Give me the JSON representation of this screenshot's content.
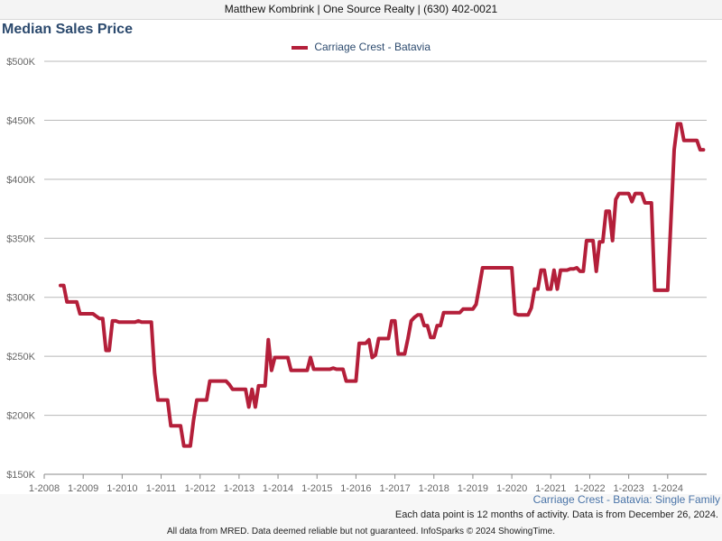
{
  "header": {
    "text": "Matthew Kombrink | One Source Realty | (630) 402-0021"
  },
  "footer": {
    "subtitle": "Carriage Crest - Batavia: Single Family",
    "note": "Each data point is 12 months of activity. Data is from December 26, 2024.",
    "disclaimer": "All data from MRED. Data deemed reliable but not guaranteed. InfoSparks © 2024 ShowingTime."
  },
  "colors": {
    "series": "#b41f3a",
    "grid": "#b8b8b8",
    "title": "#2c4a6e"
  },
  "chart_data": {
    "type": "line",
    "title": "Median Sales Price",
    "xlabel": "",
    "ylabel": "",
    "grid": true,
    "legend_position": "top-center",
    "ylim": [
      150000,
      500000
    ],
    "y_ticks": [
      150000,
      200000,
      250000,
      300000,
      350000,
      400000,
      450000,
      500000
    ],
    "y_tick_labels": [
      "$150K",
      "$200K",
      "$250K",
      "$300K",
      "$350K",
      "$400K",
      "$450K",
      "$500K"
    ],
    "xlim": [
      "2008-01",
      "2024-12"
    ],
    "x_tick_labels": [
      "1-2008",
      "1-2009",
      "1-2010",
      "1-2011",
      "1-2012",
      "1-2013",
      "1-2014",
      "1-2015",
      "1-2016",
      "1-2017",
      "1-2018",
      "1-2019",
      "1-2020",
      "1-2021",
      "1-2022",
      "1-2023",
      "1-2024"
    ],
    "series": [
      {
        "name": "Carriage Crest - Batavia",
        "points": [
          [
            "2008-06",
            310000
          ],
          [
            "2008-07",
            310000
          ],
          [
            "2008-08",
            296000
          ],
          [
            "2008-09",
            296000
          ],
          [
            "2008-10",
            296000
          ],
          [
            "2008-11",
            296000
          ],
          [
            "2008-12",
            286000
          ],
          [
            "2009-01",
            286000
          ],
          [
            "2009-02",
            286000
          ],
          [
            "2009-03",
            286000
          ],
          [
            "2009-04",
            286000
          ],
          [
            "2009-05",
            284000
          ],
          [
            "2009-06",
            282000
          ],
          [
            "2009-07",
            282000
          ],
          [
            "2009-08",
            255000
          ],
          [
            "2009-09",
            255000
          ],
          [
            "2009-10",
            280000
          ],
          [
            "2009-11",
            280000
          ],
          [
            "2009-12",
            279000
          ],
          [
            "2010-01",
            279000
          ],
          [
            "2010-02",
            279000
          ],
          [
            "2010-03",
            279000
          ],
          [
            "2010-04",
            279000
          ],
          [
            "2010-05",
            279000
          ],
          [
            "2010-06",
            280000
          ],
          [
            "2010-07",
            279000
          ],
          [
            "2010-08",
            279000
          ],
          [
            "2010-09",
            279000
          ],
          [
            "2010-10",
            279000
          ],
          [
            "2010-11",
            236000
          ],
          [
            "2010-12",
            213000
          ],
          [
            "2011-01",
            213000
          ],
          [
            "2011-02",
            213000
          ],
          [
            "2011-03",
            213000
          ],
          [
            "2011-04",
            191000
          ],
          [
            "2011-05",
            191000
          ],
          [
            "2011-06",
            191000
          ],
          [
            "2011-07",
            191000
          ],
          [
            "2011-08",
            174000
          ],
          [
            "2011-09",
            174000
          ],
          [
            "2011-10",
            174000
          ],
          [
            "2011-11",
            196000
          ],
          [
            "2011-12",
            213000
          ],
          [
            "2012-01",
            213000
          ],
          [
            "2012-02",
            213000
          ],
          [
            "2012-03",
            213000
          ],
          [
            "2012-04",
            229000
          ],
          [
            "2012-05",
            229000
          ],
          [
            "2012-06",
            229000
          ],
          [
            "2012-07",
            229000
          ],
          [
            "2012-08",
            229000
          ],
          [
            "2012-09",
            229000
          ],
          [
            "2012-10",
            226000
          ],
          [
            "2012-11",
            222000
          ],
          [
            "2012-12",
            222000
          ],
          [
            "2013-01",
            222000
          ],
          [
            "2013-02",
            222000
          ],
          [
            "2013-03",
            222000
          ],
          [
            "2013-04",
            207000
          ],
          [
            "2013-05",
            222000
          ],
          [
            "2013-06",
            207000
          ],
          [
            "2013-07",
            225000
          ],
          [
            "2013-08",
            225000
          ],
          [
            "2013-09",
            225000
          ],
          [
            "2013-10",
            264000
          ],
          [
            "2013-11",
            238000
          ],
          [
            "2013-12",
            249000
          ],
          [
            "2014-01",
            249000
          ],
          [
            "2014-02",
            249000
          ],
          [
            "2014-03",
            249000
          ],
          [
            "2014-04",
            249000
          ],
          [
            "2014-05",
            238000
          ],
          [
            "2014-06",
            238000
          ],
          [
            "2014-07",
            238000
          ],
          [
            "2014-08",
            238000
          ],
          [
            "2014-09",
            238000
          ],
          [
            "2014-10",
            238000
          ],
          [
            "2014-11",
            249000
          ],
          [
            "2014-12",
            239000
          ],
          [
            "2015-01",
            239000
          ],
          [
            "2015-02",
            239000
          ],
          [
            "2015-03",
            239000
          ],
          [
            "2015-04",
            239000
          ],
          [
            "2015-05",
            239000
          ],
          [
            "2015-06",
            240000
          ],
          [
            "2015-07",
            239000
          ],
          [
            "2015-08",
            239000
          ],
          [
            "2015-09",
            239000
          ],
          [
            "2015-10",
            229000
          ],
          [
            "2015-11",
            229000
          ],
          [
            "2015-12",
            229000
          ],
          [
            "2016-01",
            229000
          ],
          [
            "2016-02",
            261000
          ],
          [
            "2016-03",
            261000
          ],
          [
            "2016-04",
            261000
          ],
          [
            "2016-05",
            264000
          ],
          [
            "2016-06",
            249000
          ],
          [
            "2016-07",
            251000
          ],
          [
            "2016-08",
            265000
          ],
          [
            "2016-09",
            265000
          ],
          [
            "2016-10",
            265000
          ],
          [
            "2016-11",
            265000
          ],
          [
            "2016-12",
            280000
          ],
          [
            "2017-01",
            280000
          ],
          [
            "2017-02",
            252000
          ],
          [
            "2017-03",
            252000
          ],
          [
            "2017-04",
            252000
          ],
          [
            "2017-05",
            265000
          ],
          [
            "2017-06",
            280000
          ],
          [
            "2017-07",
            283000
          ],
          [
            "2017-08",
            285000
          ],
          [
            "2017-09",
            285000
          ],
          [
            "2017-10",
            276000
          ],
          [
            "2017-11",
            276000
          ],
          [
            "2017-12",
            266000
          ],
          [
            "2018-01",
            266000
          ],
          [
            "2018-02",
            276000
          ],
          [
            "2018-03",
            276000
          ],
          [
            "2018-04",
            287000
          ],
          [
            "2018-05",
            287000
          ],
          [
            "2018-06",
            287000
          ],
          [
            "2018-07",
            287000
          ],
          [
            "2018-08",
            287000
          ],
          [
            "2018-09",
            287000
          ],
          [
            "2018-10",
            290000
          ],
          [
            "2018-11",
            290000
          ],
          [
            "2018-12",
            290000
          ],
          [
            "2019-01",
            290000
          ],
          [
            "2019-02",
            294000
          ],
          [
            "2019-03",
            309000
          ],
          [
            "2019-04",
            325000
          ],
          [
            "2019-05",
            325000
          ],
          [
            "2019-06",
            325000
          ],
          [
            "2019-07",
            325000
          ],
          [
            "2019-08",
            325000
          ],
          [
            "2019-09",
            325000
          ],
          [
            "2019-10",
            325000
          ],
          [
            "2019-11",
            325000
          ],
          [
            "2019-12",
            325000
          ],
          [
            "2020-01",
            325000
          ],
          [
            "2020-02",
            286000
          ],
          [
            "2020-03",
            285000
          ],
          [
            "2020-04",
            285000
          ],
          [
            "2020-05",
            285000
          ],
          [
            "2020-06",
            285000
          ],
          [
            "2020-07",
            291000
          ],
          [
            "2020-08",
            307000
          ],
          [
            "2020-09",
            307000
          ],
          [
            "2020-10",
            323000
          ],
          [
            "2020-11",
            323000
          ],
          [
            "2020-12",
            307000
          ],
          [
            "2021-01",
            307000
          ],
          [
            "2021-02",
            323000
          ],
          [
            "2021-03",
            307000
          ],
          [
            "2021-04",
            323000
          ],
          [
            "2021-05",
            323000
          ],
          [
            "2021-06",
            323000
          ],
          [
            "2021-07",
            324000
          ],
          [
            "2021-08",
            324000
          ],
          [
            "2021-09",
            325000
          ],
          [
            "2021-10",
            322000
          ],
          [
            "2021-11",
            322000
          ],
          [
            "2021-12",
            348000
          ],
          [
            "2022-01",
            348000
          ],
          [
            "2022-02",
            348000
          ],
          [
            "2022-03",
            322000
          ],
          [
            "2022-04",
            347000
          ],
          [
            "2022-05",
            347000
          ],
          [
            "2022-06",
            373000
          ],
          [
            "2022-07",
            373000
          ],
          [
            "2022-08",
            348000
          ],
          [
            "2022-09",
            383000
          ],
          [
            "2022-10",
            388000
          ],
          [
            "2022-11",
            388000
          ],
          [
            "2022-12",
            388000
          ],
          [
            "2023-01",
            388000
          ],
          [
            "2023-02",
            381000
          ],
          [
            "2023-03",
            388000
          ],
          [
            "2023-04",
            388000
          ],
          [
            "2023-05",
            388000
          ],
          [
            "2023-06",
            380000
          ],
          [
            "2023-07",
            380000
          ],
          [
            "2023-08",
            380000
          ],
          [
            "2023-09",
            306000
          ],
          [
            "2023-10",
            306000
          ],
          [
            "2023-11",
            306000
          ],
          [
            "2023-12",
            306000
          ],
          [
            "2024-01",
            306000
          ],
          [
            "2024-02",
            365000
          ],
          [
            "2024-03",
            425000
          ],
          [
            "2024-04",
            447000
          ],
          [
            "2024-05",
            447000
          ],
          [
            "2024-06",
            433000
          ],
          [
            "2024-07",
            433000
          ],
          [
            "2024-08",
            433000
          ],
          [
            "2024-09",
            433000
          ],
          [
            "2024-10",
            433000
          ],
          [
            "2024-11",
            425000
          ],
          [
            "2024-12",
            425000
          ]
        ]
      }
    ]
  }
}
